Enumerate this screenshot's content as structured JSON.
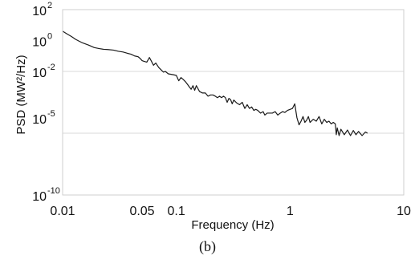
{
  "chart_data": {
    "type": "line",
    "xscale": "log",
    "yscale": "log",
    "xlim": [
      0.01,
      10
    ],
    "ylim": [
      1e-10,
      100
    ],
    "xlabel": "Frequency (Hz)",
    "ylabel": "PSD (MW²/Hz)",
    "xticks": [
      {
        "value": 0.01,
        "label": "0.01"
      },
      {
        "value": 0.05,
        "label": "0.05"
      },
      {
        "value": 0.1,
        "label": "0.1"
      },
      {
        "value": 1,
        "label": "1"
      },
      {
        "value": 10,
        "label": "10"
      }
    ],
    "yticks": [
      {
        "value": 100,
        "base": "10",
        "exp": "2"
      },
      {
        "value": 1,
        "base": "10",
        "exp": "0"
      },
      {
        "value": 0.01,
        "base": "10",
        "exp": "-2"
      },
      {
        "value": 1e-05,
        "base": "10",
        "exp": "-5"
      },
      {
        "value": 1e-10,
        "base": "10",
        "exp": "-10"
      }
    ],
    "hgrid": [
      0.01,
      1e-06
    ],
    "vgrid": [
      10
    ],
    "line_color": "#1a1a1a",
    "grid_color": "#d9d9d9",
    "series": [
      {
        "x": [
          0.01,
          0.011,
          0.012,
          0.013,
          0.014,
          0.015,
          0.017,
          0.019,
          0.021,
          0.023,
          0.025,
          0.028,
          0.031,
          0.034,
          0.037,
          0.04,
          0.043,
          0.046,
          0.048,
          0.05,
          0.052,
          0.055,
          0.058,
          0.06,
          0.063,
          0.066,
          0.07,
          0.074,
          0.077,
          0.08,
          0.085,
          0.09,
          0.095,
          0.1,
          0.105,
          0.11,
          0.115,
          0.12,
          0.125,
          0.13,
          0.135,
          0.14,
          0.145,
          0.15,
          0.16,
          0.17,
          0.18,
          0.19,
          0.2,
          0.21,
          0.22,
          0.23,
          0.24,
          0.25,
          0.26,
          0.27,
          0.28,
          0.29,
          0.3,
          0.31,
          0.32,
          0.34,
          0.36,
          0.38,
          0.4,
          0.42,
          0.44,
          0.46,
          0.48,
          0.5,
          0.52,
          0.55,
          0.58,
          0.6,
          0.63,
          0.66,
          0.7,
          0.74,
          0.78,
          0.82,
          0.86,
          0.9,
          0.95,
          1.0,
          1.05,
          1.1,
          1.15,
          1.2,
          1.25,
          1.3,
          1.35,
          1.4,
          1.45,
          1.5,
          1.6,
          1.7,
          1.8,
          1.9,
          2.0,
          2.1,
          2.2,
          2.3,
          2.4,
          2.5,
          2.55,
          2.6,
          2.7,
          2.8,
          3.0,
          3.2,
          3.4,
          3.6,
          3.8,
          4.0,
          4.3,
          4.6,
          4.8
        ],
        "y": [
          4.0,
          2.6,
          1.8,
          1.2,
          0.9,
          0.7,
          0.5,
          0.35,
          0.3,
          0.27,
          0.26,
          0.24,
          0.2,
          0.18,
          0.15,
          0.13,
          0.1,
          0.09,
          0.07,
          0.05,
          0.045,
          0.04,
          0.08,
          0.05,
          0.025,
          0.035,
          0.018,
          0.012,
          0.009,
          0.01,
          0.007,
          0.0065,
          0.006,
          0.0055,
          0.0025,
          0.004,
          0.003,
          0.0022,
          0.0015,
          0.001,
          0.0007,
          0.0012,
          0.0006,
          0.0012,
          0.0005,
          0.0004,
          0.0004,
          0.00025,
          0.0003,
          0.0003,
          0.00025,
          0.0002,
          0.00025,
          0.0002,
          0.00025,
          0.0002,
          0.0001,
          0.00018,
          0.00015,
          8e-05,
          0.00014,
          9e-05,
          7e-05,
          0.0001,
          4e-05,
          7e-05,
          4e-05,
          5e-05,
          3e-05,
          3.5e-05,
          3e-05,
          2e-05,
          2.5e-05,
          1.5e-05,
          2e-05,
          2e-05,
          2e-05,
          2.5e-05,
          1.5e-05,
          2e-05,
          2.5e-05,
          2.2e-05,
          3e-05,
          3.5e-05,
          4e-05,
          8e-05,
          1e-05,
          3.5e-06,
          6e-06,
          1.2e-05,
          5e-06,
          7e-06,
          1.2e-05,
          5e-06,
          8e-06,
          6e-06,
          1.2e-05,
          4e-06,
          8e-06,
          5e-06,
          6e-06,
          4e-06,
          5e-06,
          4e-06,
          8e-07,
          2.2e-06,
          7e-07,
          1.8e-06,
          8e-07,
          1.6e-06,
          7e-07,
          1.5e-06,
          8e-07,
          1.3e-06,
          7e-07,
          1.2e-06,
          1e-06
        ]
      }
    ]
  },
  "caption": "(b)"
}
